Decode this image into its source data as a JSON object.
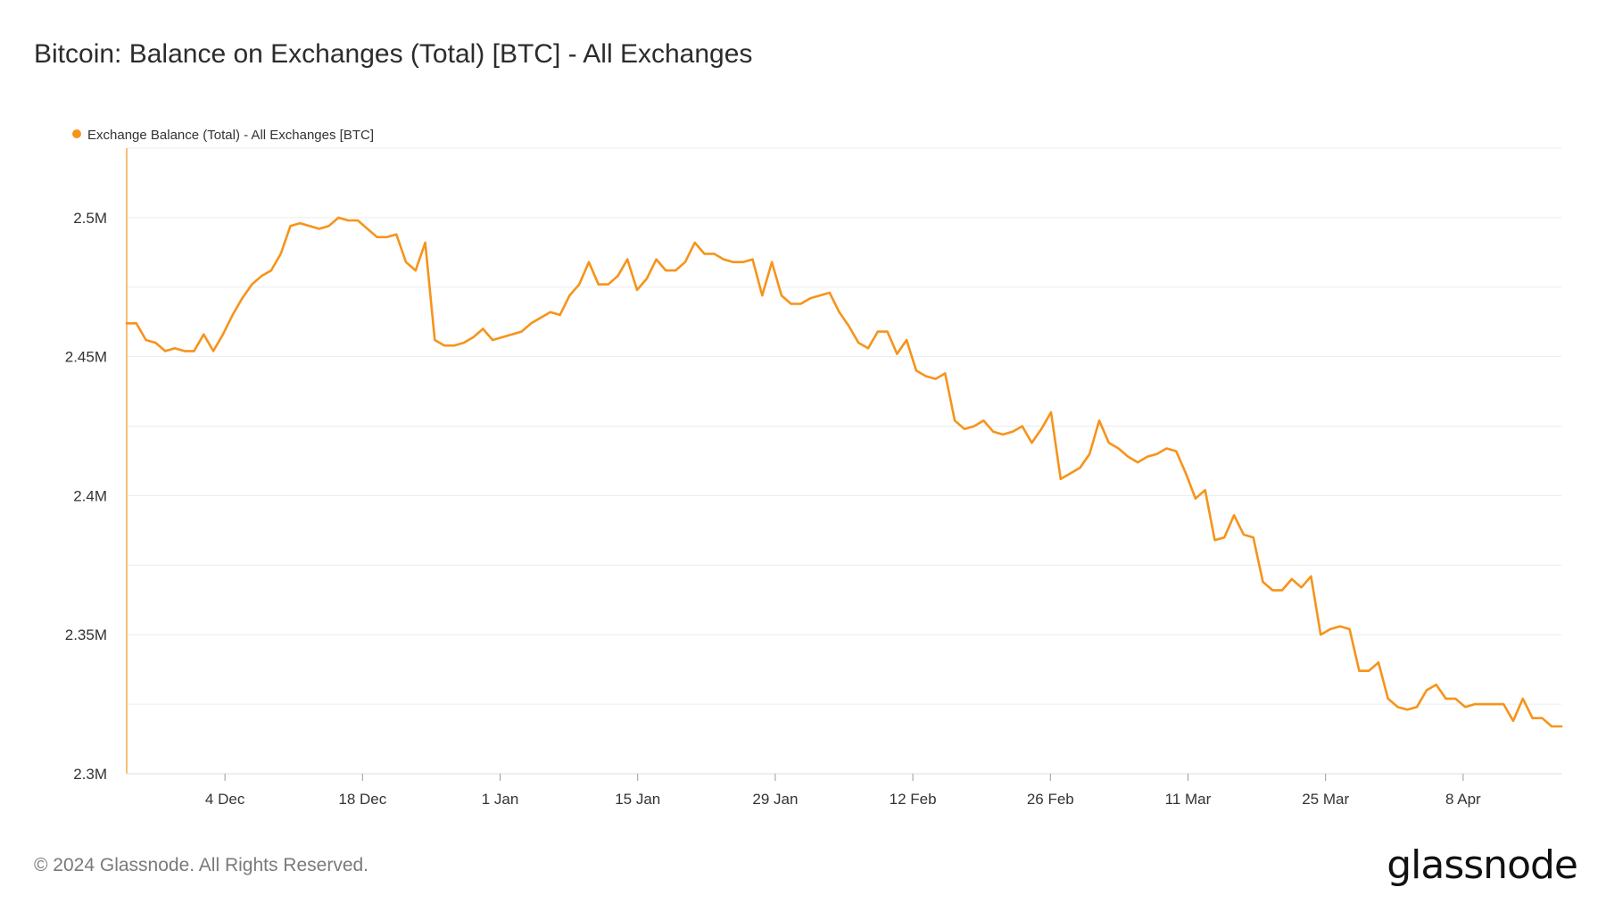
{
  "title": "Bitcoin: Balance on Exchanges (Total) [BTC] - All Exchanges",
  "footer": "© 2024 Glassnode. All Rights Reserved.",
  "logo": "glassnode",
  "colors": {
    "series": "#f7931a",
    "grid": "#ececec",
    "axis_text": "#333333"
  },
  "chart_data": {
    "type": "line",
    "title": "Bitcoin: Balance on Exchanges (Total) [BTC] - All Exchanges",
    "xlabel": "",
    "ylabel": "",
    "ylim": [
      2300000,
      2525000
    ],
    "y_ticks": [
      2300000,
      2350000,
      2400000,
      2450000,
      2500000
    ],
    "y_tick_labels": [
      "2.3M",
      "2.35M",
      "2.4M",
      "2.45M",
      "2.5M"
    ],
    "x_tick_labels": [
      "4 Dec",
      "18 Dec",
      "1 Jan",
      "15 Jan",
      "29 Jan",
      "12 Feb",
      "26 Feb",
      "11 Mar",
      "25 Mar",
      "8 Apr"
    ],
    "x_tick_dates": [
      "2023-12-04",
      "2023-12-18",
      "2024-01-01",
      "2024-01-15",
      "2024-01-29",
      "2024-02-12",
      "2024-02-26",
      "2024-03-11",
      "2024-03-25",
      "2024-04-08"
    ],
    "x_start": "2023-11-24",
    "x_end": "2024-04-18",
    "grid": true,
    "legend_position": "top-left",
    "series": [
      {
        "name": "Exchange Balance (Total) - All Exchanges [BTC]",
        "values": [
          2462000,
          2462000,
          2456000,
          2455000,
          2452000,
          2453000,
          2452000,
          2452000,
          2458000,
          2452000,
          2458000,
          2465000,
          2471000,
          2476000,
          2479000,
          2481000,
          2487000,
          2497000,
          2498000,
          2497000,
          2496000,
          2497000,
          2500000,
          2499000,
          2499000,
          2496000,
          2493000,
          2493000,
          2494000,
          2484000,
          2481000,
          2491000,
          2456000,
          2454000,
          2454000,
          2455000,
          2457000,
          2460000,
          2456000,
          2457000,
          2458000,
          2459000,
          2462000,
          2464000,
          2466000,
          2465000,
          2472000,
          2476000,
          2484000,
          2476000,
          2476000,
          2479000,
          2485000,
          2474000,
          2478000,
          2485000,
          2481000,
          2481000,
          2484000,
          2491000,
          2487000,
          2487000,
          2485000,
          2484000,
          2484000,
          2485000,
          2472000,
          2484000,
          2472000,
          2469000,
          2469000,
          2471000,
          2472000,
          2473000,
          2466000,
          2461000,
          2455000,
          2453000,
          2459000,
          2459000,
          2451000,
          2456000,
          2445000,
          2443000,
          2442000,
          2444000,
          2427000,
          2424000,
          2425000,
          2427000,
          2423000,
          2422000,
          2423000,
          2425000,
          2419000,
          2424000,
          2430000,
          2406000,
          2408000,
          2410000,
          2415000,
          2427000,
          2419000,
          2417000,
          2414000,
          2412000,
          2414000,
          2415000,
          2417000,
          2416000,
          2408000,
          2399000,
          2402000,
          2384000,
          2385000,
          2393000,
          2386000,
          2385000,
          2369000,
          2366000,
          2366000,
          2370000,
          2367000,
          2371000,
          2350000,
          2352000,
          2353000,
          2352000,
          2337000,
          2337000,
          2340000,
          2327000,
          2324000,
          2323000,
          2324000,
          2330000,
          2332000,
          2327000,
          2327000,
          2324000,
          2325000,
          2325000,
          2325000,
          2325000,
          2319000,
          2327000,
          2320000,
          2320000,
          2317000,
          2317000
        ]
      }
    ]
  }
}
